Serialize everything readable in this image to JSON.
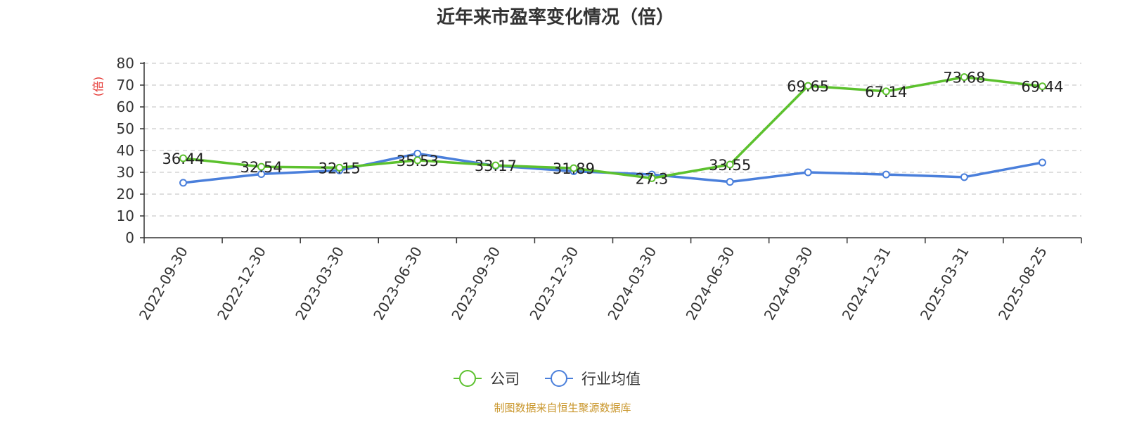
{
  "chart_data": {
    "type": "line",
    "title": "近年来市盈率变化情况（倍）",
    "ylabel": "(倍)",
    "xlabel": "",
    "ylim": [
      0,
      80
    ],
    "yticks": [
      0,
      10,
      20,
      30,
      40,
      50,
      60,
      70,
      80
    ],
    "grid": true,
    "legend_position": "bottom",
    "categories": [
      "2022-09-30",
      "2022-12-30",
      "2023-03-30",
      "2023-06-30",
      "2023-09-30",
      "2023-12-30",
      "2024-03-30",
      "2024-06-30",
      "2024-09-30",
      "2024-12-31",
      "2025-03-31",
      "2025-08-25"
    ],
    "series": [
      {
        "name": "公司",
        "color": "#5cc12e",
        "values": [
          36.44,
          32.54,
          32.15,
          35.53,
          33.17,
          31.89,
          27.3,
          33.55,
          69.65,
          67.14,
          73.68,
          69.44
        ],
        "labels": [
          "36.44",
          "32.54",
          "32.15",
          "35.53",
          "33.17",
          "31.89",
          "27.3",
          "33.55",
          "69.65",
          "67.14",
          "73.68",
          "69.44"
        ]
      },
      {
        "name": "行业均值",
        "color": "#4a7fdb",
        "values": [
          25.2,
          29.2,
          30.9,
          38.6,
          33.0,
          30.5,
          29.0,
          25.6,
          30.0,
          29.0,
          27.8,
          34.5
        ]
      }
    ]
  },
  "colors": {
    "ylabel": "#e53935",
    "source": "#c9962b",
    "grid": "#cccccc",
    "axis": "#333333"
  },
  "footer": {
    "source": "制图数据来自恒生聚源数据库"
  }
}
